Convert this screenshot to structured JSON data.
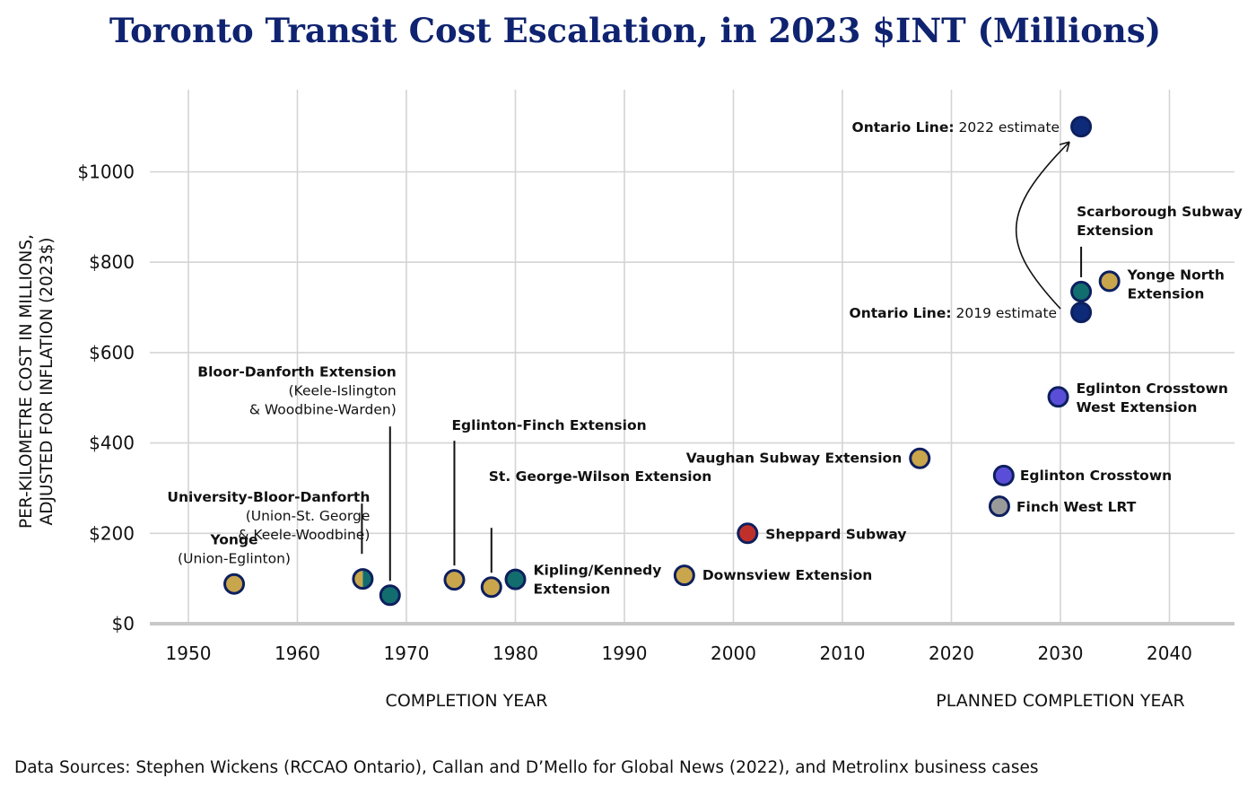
{
  "chart_data": {
    "type": "scatter",
    "title": "Toronto Transit Cost Escalation, in 2023 $INT (Millions)",
    "ylabel_lines": [
      "PER-KILOMETRE COST IN MILLIONS,",
      "ADJUSTED FOR INFLATION (2023$)"
    ],
    "xlabel_left": "COMPLETION YEAR",
    "xlabel_right": "PLANNED COMPLETION YEAR",
    "source": "Data Sources: Stephen Wickens (RCCAO Ontario), Callan and D’Mello for Global News (2022), and Metrolinx business cases",
    "xlim": [
      1946.5,
      2046
    ],
    "ylim": [
      0,
      1160
    ],
    "x_ticks": [
      1950,
      1960,
      1970,
      1980,
      1990,
      2000,
      2010,
      2020,
      2030,
      2040
    ],
    "x_tick_labels": [
      "1950",
      "1960",
      "1970",
      "1980",
      "1990",
      "2000",
      "2010",
      "2020",
      "2030",
      "2040"
    ],
    "y_ticks": [
      0,
      200,
      400,
      600,
      800,
      1000
    ],
    "y_tick_labels": [
      "$0",
      "$200",
      "$400",
      "$600",
      "$800",
      "$1000"
    ],
    "grid": true,
    "colors": {
      "gold": "#c9a54c",
      "teal": "#126e6e",
      "navy": "#0d2b78",
      "red": "#c0302b",
      "purple": "#5a4ed8",
      "gray": "#9a9a9a",
      "border": "#0d1f5e",
      "title": "#0f2370"
    },
    "points": [
      {
        "x": 1954.2,
        "y": 88,
        "color": "gold",
        "name": "Yonge",
        "sub": [
          "(Union-Eglinton)"
        ]
      },
      {
        "x": 1966.0,
        "y": 99,
        "color": "goldteal",
        "name": "University-Bloor-Danforth",
        "sub": [
          "(Union-St. George",
          "& Keele-Woodbine)"
        ]
      },
      {
        "x": 1968.5,
        "y": 63,
        "color": "teal",
        "name": "Bloor-Danforth Extension",
        "sub": [
          "(Keele-Islington",
          "& Woodbine-Warden)"
        ]
      },
      {
        "x": 1974.4,
        "y": 97,
        "color": "gold",
        "name": "Eglinton-Finch Extension",
        "sub": []
      },
      {
        "x": 1977.8,
        "y": 81,
        "color": "gold",
        "name": "St. George-Wilson Extension",
        "sub": []
      },
      {
        "x": 1980.0,
        "y": 98,
        "color": "teal",
        "name": "Kipling/Kennedy",
        "sub": [
          "Extension"
        ]
      },
      {
        "x": 1995.5,
        "y": 107,
        "color": "gold",
        "name": "Downsview Extension",
        "sub": []
      },
      {
        "x": 2001.3,
        "y": 200,
        "color": "red",
        "name": "Sheppard Subway",
        "sub": []
      },
      {
        "x": 2017.1,
        "y": 366,
        "color": "gold",
        "name": "Vaughan Subway Extension",
        "sub": []
      },
      {
        "x": 2024.8,
        "y": 328,
        "color": "purple",
        "name": "Eglinton Crosstown",
        "sub": []
      },
      {
        "x": 2024.4,
        "y": 260,
        "color": "gray",
        "name": "Finch West LRT",
        "sub": []
      },
      {
        "x": 2029.8,
        "y": 502,
        "color": "purple",
        "name": "Eglinton Crosstown",
        "sub": [
          "West Extension"
        ]
      },
      {
        "x": 2031.9,
        "y": 689,
        "color": "navy",
        "name": "Ontario Line:",
        "sub": [
          "2019 estimate"
        ]
      },
      {
        "x": 2031.9,
        "y": 735,
        "color": "teal",
        "name": "Scarborough Subway",
        "sub": [
          "Extension"
        ]
      },
      {
        "x": 2034.5,
        "y": 758,
        "color": "gold",
        "name": "Yonge North",
        "sub": [
          "Extension"
        ]
      },
      {
        "x": 2031.9,
        "y": 1100,
        "color": "navy",
        "name": "Ontario Line:",
        "sub": [
          "2022 estimate"
        ]
      }
    ]
  }
}
